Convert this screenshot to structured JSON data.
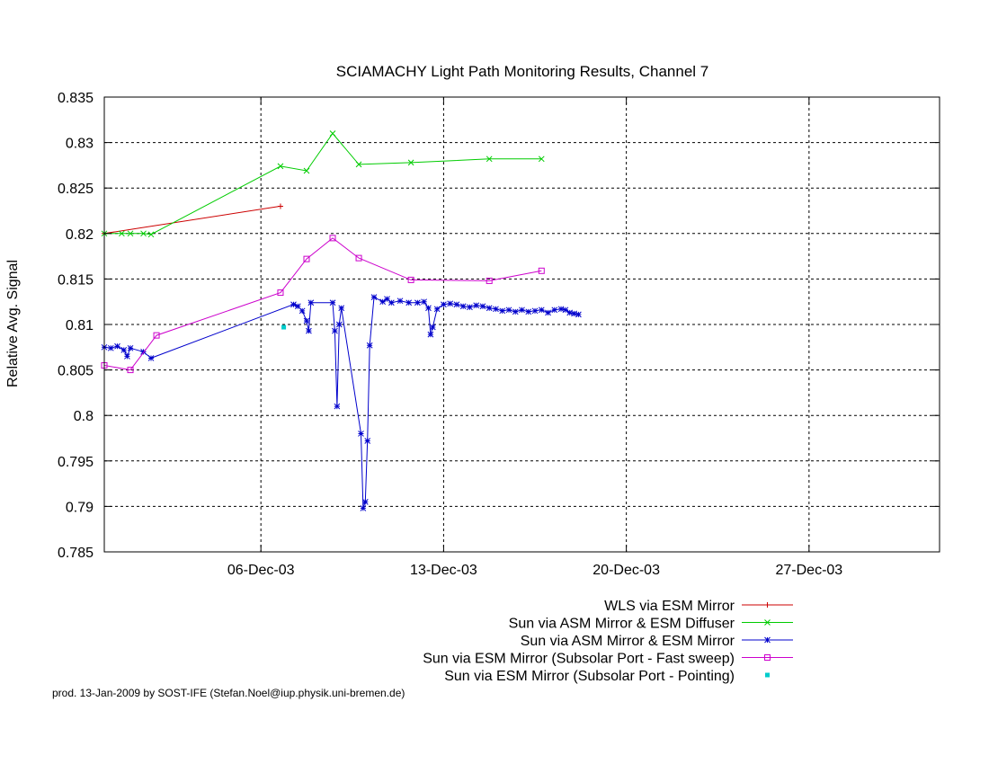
{
  "chart_data": {
    "type": "line",
    "title": "SCIAMACHY Light Path Monitoring Results, Channel 7",
    "xlabel": "",
    "ylabel": "Relative Avg. Signal",
    "ylim": [
      0.785,
      0.835
    ],
    "xlim": [
      "2003-11-30",
      "2004-01-01"
    ],
    "yticks": [
      0.785,
      0.79,
      0.795,
      0.8,
      0.805,
      0.81,
      0.815,
      0.82,
      0.825,
      0.83,
      0.835
    ],
    "ytick_labels": [
      "0.785",
      "0.79",
      "0.795",
      "0.8",
      "0.805",
      "0.81",
      "0.815",
      "0.82",
      "0.825",
      "0.83",
      "0.835"
    ],
    "xticks": [
      "2003-12-06",
      "2003-12-13",
      "2003-12-20",
      "2003-12-27"
    ],
    "xtick_labels": [
      "06-Dec-03",
      "13-Dec-03",
      "20-Dec-03",
      "27-Dec-03"
    ],
    "grid": true,
    "legend_position": "bottom-center",
    "series": [
      {
        "name": "WLS via ESM Mirror",
        "color": "#cc0000",
        "marker": "plus",
        "points": [
          [
            "2003-11-30 00:00",
            0.82
          ],
          [
            "2003-12-06 18:00",
            0.823
          ]
        ]
      },
      {
        "name": "Sun via ASM Mirror & ESM Diffuser",
        "color": "#00cc00",
        "marker": "cross",
        "points": [
          [
            "2003-11-30 00:00",
            0.82
          ],
          [
            "2003-11-30 16:00",
            0.82
          ],
          [
            "2003-12-01 00:00",
            0.82
          ],
          [
            "2003-12-01 12:00",
            0.82
          ],
          [
            "2003-12-01 19:00",
            0.8199
          ],
          [
            "2003-12-06 18:00",
            0.8274
          ],
          [
            "2003-12-07 18:00",
            0.8269
          ],
          [
            "2003-12-08 18:00",
            0.831
          ],
          [
            "2003-12-09 18:00",
            0.8276
          ],
          [
            "2003-12-11 18:00",
            0.8278
          ],
          [
            "2003-12-14 18:00",
            0.8282
          ],
          [
            "2003-12-16 18:00",
            0.8282
          ]
        ]
      },
      {
        "name": "Sun via ASM Mirror & ESM Mirror",
        "color": "#0000cc",
        "marker": "star",
        "points": [
          [
            "2003-11-30 00:00",
            0.8075
          ],
          [
            "2003-11-30 06:00",
            0.8074
          ],
          [
            "2003-11-30 12:00",
            0.8076
          ],
          [
            "2003-11-30 18:00",
            0.8072
          ],
          [
            "2003-11-30 21:00",
            0.8065
          ],
          [
            "2003-12-01 00:00",
            0.8074
          ],
          [
            "2003-12-01 12:00",
            0.807
          ],
          [
            "2003-12-01 19:00",
            0.8063
          ],
          [
            "2003-12-07 06:00",
            0.8122
          ],
          [
            "2003-12-07 10:00",
            0.812
          ],
          [
            "2003-12-07 14:00",
            0.8115
          ],
          [
            "2003-12-07 18:00",
            0.8104
          ],
          [
            "2003-12-07 20:00",
            0.8093
          ],
          [
            "2003-12-07 22:00",
            0.8124
          ],
          [
            "2003-12-08 18:00",
            0.8124
          ],
          [
            "2003-12-08 20:00",
            0.8093
          ],
          [
            "2003-12-08 22:00",
            0.801
          ],
          [
            "2003-12-09 00:00",
            0.81
          ],
          [
            "2003-12-09 02:00",
            0.8118
          ],
          [
            "2003-12-09 20:00",
            0.798
          ],
          [
            "2003-12-09 22:00",
            0.7898
          ],
          [
            "2003-12-10 00:00",
            0.7905
          ],
          [
            "2003-12-10 02:00",
            0.7972
          ],
          [
            "2003-12-10 04:00",
            0.8077
          ],
          [
            "2003-12-10 08:00",
            0.813
          ],
          [
            "2003-12-10 16:00",
            0.8125
          ],
          [
            "2003-12-10 20:00",
            0.8128
          ],
          [
            "2003-12-11 00:00",
            0.8124
          ],
          [
            "2003-12-11 08:00",
            0.8126
          ],
          [
            "2003-12-11 16:00",
            0.8124
          ],
          [
            "2003-12-12 00:00",
            0.8124
          ],
          [
            "2003-12-12 06:00",
            0.8125
          ],
          [
            "2003-12-12 10:00",
            0.8118
          ],
          [
            "2003-12-12 12:00",
            0.8089
          ],
          [
            "2003-12-12 14:00",
            0.8097
          ],
          [
            "2003-12-12 18:00",
            0.8117
          ],
          [
            "2003-12-13 00:00",
            0.8122
          ],
          [
            "2003-12-13 06:00",
            0.8123
          ],
          [
            "2003-12-13 12:00",
            0.8122
          ],
          [
            "2003-12-13 18:00",
            0.812
          ],
          [
            "2003-12-14 00:00",
            0.8119
          ],
          [
            "2003-12-14 06:00",
            0.8121
          ],
          [
            "2003-12-14 12:00",
            0.812
          ],
          [
            "2003-12-14 18:00",
            0.8118
          ],
          [
            "2003-12-15 00:00",
            0.8117
          ],
          [
            "2003-12-15 06:00",
            0.8115
          ],
          [
            "2003-12-15 12:00",
            0.8116
          ],
          [
            "2003-12-15 18:00",
            0.8114
          ],
          [
            "2003-12-16 00:00",
            0.8116
          ],
          [
            "2003-12-16 06:00",
            0.8114
          ],
          [
            "2003-12-16 12:00",
            0.8115
          ],
          [
            "2003-12-16 18:00",
            0.8116
          ],
          [
            "2003-12-17 00:00",
            0.8113
          ],
          [
            "2003-12-17 06:00",
            0.8116
          ],
          [
            "2003-12-17 12:00",
            0.8117
          ],
          [
            "2003-12-17 16:00",
            0.8116
          ],
          [
            "2003-12-17 20:00",
            0.8113
          ],
          [
            "2003-12-18 00:00",
            0.8112
          ],
          [
            "2003-12-18 04:00",
            0.8111
          ]
        ]
      },
      {
        "name": "Sun via ESM Mirror (Subsolar Port - Fast sweep)",
        "color": "#cc00cc",
        "marker": "square",
        "points": [
          [
            "2003-11-30 00:00",
            0.8055
          ],
          [
            "2003-12-01 00:00",
            0.805
          ],
          [
            "2003-12-02 00:00",
            0.8088
          ],
          [
            "2003-12-06 18:00",
            0.8135
          ],
          [
            "2003-12-07 18:00",
            0.8172
          ],
          [
            "2003-12-08 18:00",
            0.8195
          ],
          [
            "2003-12-09 18:00",
            0.8173
          ],
          [
            "2003-12-11 18:00",
            0.8149
          ],
          [
            "2003-12-14 18:00",
            0.8148
          ],
          [
            "2003-12-16 18:00",
            0.8159
          ]
        ]
      },
      {
        "name": "Sun via ESM Mirror (Subsolar Port - Pointing)",
        "color": "#00cccc",
        "marker": "dot",
        "points": [
          [
            "2003-12-06 21:00",
            0.8097
          ]
        ]
      }
    ]
  },
  "footer": "prod. 13-Jan-2009 by SOST-IFE (Stefan.Noel@iup.physik.uni-bremen.de)"
}
